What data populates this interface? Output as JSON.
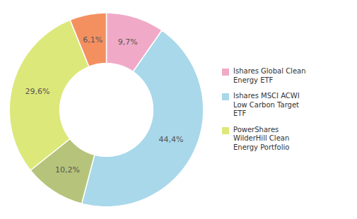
{
  "chart_data": {
    "type": "pie",
    "values": [
      9.7,
      44.4,
      10.2,
      29.6,
      6.1
    ],
    "value_labels": [
      "9,7%",
      "44,4%",
      "10,2%",
      "29,6%",
      "6,1%"
    ],
    "colors": [
      "#f0aac8",
      "#a8d8ea",
      "#b5c47a",
      "#dce87a",
      "#f49060"
    ],
    "data_labels": true,
    "legend_entries": [
      {
        "name": "Ishares Global Clean\nEnergy ETF",
        "color": "#f0aac8"
      },
      {
        "name": "Ishares MSCI ACWI\nLow Carbon Target\nETF",
        "color": "#a8d8ea"
      },
      {
        "name": "PowerShares\nWilderHill Clean\nEnergy Portfolio",
        "color": "#dce87a"
      }
    ]
  }
}
